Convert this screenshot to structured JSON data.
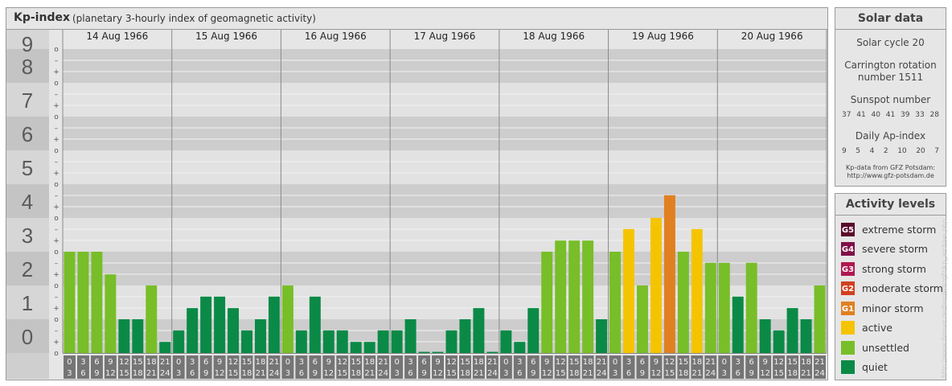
{
  "header": {
    "title": "Kp-index",
    "subtitle": "(planetary 3-hourly index of geomagnetic activity)"
  },
  "chart_data": {
    "type": "bar",
    "ylim": [
      0,
      9
    ],
    "y_ticks": [
      "0",
      "1",
      "2",
      "3",
      "4",
      "5",
      "6",
      "7",
      "8",
      "9"
    ],
    "minor_tick_labels": [
      "–",
      "+",
      "o"
    ],
    "days": [
      "14 Aug 1966",
      "15 Aug 1966",
      "16 Aug 1966",
      "17 Aug 1966",
      "18 Aug 1966",
      "19 Aug 1966",
      "20 Aug 1966"
    ],
    "hour_labels": [
      [
        "0",
        "3"
      ],
      [
        "3",
        "6"
      ],
      [
        "6",
        "9"
      ],
      [
        "9",
        "12"
      ],
      [
        "12",
        "15"
      ],
      [
        "15",
        "18"
      ],
      [
        "18",
        "21"
      ],
      [
        "21",
        "24"
      ]
    ],
    "kp": [
      [
        3.0,
        3.0,
        3.0,
        2.33,
        1.0,
        1.0,
        2.0,
        0.33
      ],
      [
        0.67,
        1.33,
        1.67,
        1.67,
        1.33,
        0.67,
        1.0,
        1.67
      ],
      [
        2.0,
        0.67,
        1.67,
        0.67,
        0.67,
        0.33,
        0.33,
        0.67
      ],
      [
        0.67,
        1.0,
        0.0,
        0.0,
        0.67,
        1.0,
        1.33,
        0.0
      ],
      [
        0.67,
        0.33,
        1.33,
        3.0,
        3.33,
        3.33,
        3.33,
        1.0
      ],
      [
        3.0,
        3.67,
        2.0,
        4.0,
        4.67,
        3.0,
        3.67,
        2.67
      ],
      [
        2.67,
        1.67,
        2.67,
        1.0,
        0.67,
        1.33,
        1.0,
        2.0
      ]
    ],
    "colors": {
      "quiet": "#0a8a46",
      "unsettled": "#78be28",
      "active": "#f5c400",
      "minor": "#e08020",
      "moderate": "#d04020",
      "strong": "#b01850",
      "severe": "#801048",
      "extreme": "#5a0a2a"
    }
  },
  "solar": {
    "title": "Solar data",
    "cycle": "Solar cycle 20",
    "carrington_line1": "Carrington rotation",
    "carrington_line2": "number 1511",
    "sunspot_label": "Sunspot number",
    "sunspot_values": [
      "37",
      "41",
      "40",
      "41",
      "39",
      "33",
      "28"
    ],
    "ap_label": "Daily Ap-index",
    "ap_values": [
      "9",
      "5",
      "4",
      "2",
      "10",
      "20",
      "7"
    ],
    "source_line1": "Kp-data from GFZ Potsdam:",
    "source_line2": "http://www.gfz-potsdam.de"
  },
  "activity": {
    "title": "Activity levels",
    "levels": [
      {
        "code": "G5",
        "label": "extreme storm",
        "color": "#5a0a2a"
      },
      {
        "code": "G4",
        "label": "severe storm",
        "color": "#801048"
      },
      {
        "code": "G3",
        "label": "strong storm",
        "color": "#b01850"
      },
      {
        "code": "G2",
        "label": "moderate storm",
        "color": "#d04020"
      },
      {
        "code": "G1",
        "label": "minor storm",
        "color": "#e08020"
      },
      {
        "code": "",
        "label": "active",
        "color": "#f5c400"
      },
      {
        "code": "",
        "label": "unsettled",
        "color": "#78be28"
      },
      {
        "code": "",
        "label": "quiet",
        "color": "#0a8a46"
      }
    ]
  },
  "watermark": "http://www.flesser.de/fasr/kurzgfz/kp_archive.php"
}
